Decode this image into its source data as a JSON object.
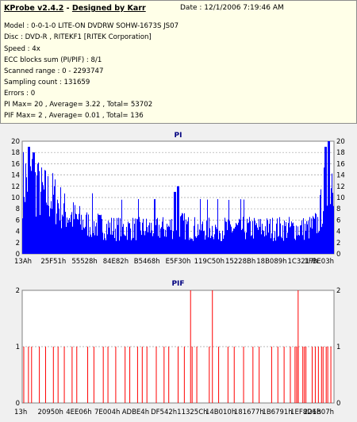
{
  "info": {
    "app_name": "KProbe v2.4.2",
    "separator": " - ",
    "designer": "Designed by Karr",
    "date_label": "Date :",
    "date_value": "12/1/2006 7:19:46 AM",
    "model": "Model : 0-0-1-0 LITE-ON DVDRW SOHW-1673S JS07",
    "disc": "Disc : DVD-R , RITEKF1 [RITEK Corporation]",
    "speed": "Speed : 4x",
    "ecc": "ECC blocks sum (PI/PIF) : 8/1",
    "scanned": "Scanned range : 0 - 2293747",
    "sampling": "Sampling count : 131659",
    "errors": "Errors : 0",
    "pi_stats": "PI Max= 20 , Average= 3.22 , Total= 53702",
    "pif_stats": "PIF Max= 2 , Average= 0.01 , Total= 136"
  },
  "chart_data": [
    {
      "type": "bar",
      "title": "PI",
      "ylim": [
        0,
        20
      ],
      "y_ticks": [
        "0",
        "2",
        "4",
        "6",
        "8",
        "10",
        "12",
        "14",
        "16",
        "18",
        "20"
      ],
      "x_tick_labels": [
        "13Ah",
        "25F51h",
        "55528h",
        "84E82h",
        "B5468h",
        "E5F30h",
        "119C50h",
        "15228Bh",
        "18B089h",
        "1C3217h",
        "1FBE03h"
      ],
      "bar_color": "#0000ff",
      "grid": true,
      "profile_x": [
        0,
        0.02,
        0.06,
        0.1,
        0.14,
        0.2,
        0.3,
        0.4,
        0.46,
        0.5,
        0.54,
        0.6,
        0.7,
        0.8,
        0.88,
        0.92,
        0.95,
        0.97,
        1.0
      ],
      "profile_y": [
        14,
        15,
        12,
        11,
        8,
        6,
        5,
        5,
        5,
        6,
        5,
        5,
        5,
        5,
        5,
        5,
        6,
        12,
        17
      ],
      "spikes": [
        [
          0.02,
          19
        ],
        [
          0.035,
          18
        ],
        [
          0.05,
          16
        ],
        [
          0.49,
          11
        ],
        [
          0.5,
          12
        ],
        [
          0.975,
          19
        ],
        [
          0.985,
          20
        ]
      ]
    },
    {
      "type": "bar",
      "title": "PIF",
      "ylim": [
        0,
        2
      ],
      "y_ticks": [
        "0",
        "1",
        "2"
      ],
      "x_tick_labels": [
        "13h",
        "20950h",
        "4EE06h",
        "7E004h",
        "ADBE4h",
        "DF542h",
        "11325Ch",
        "14B010h",
        "181677h",
        "1B6791h",
        "1EF8D1h",
        "226B07h"
      ],
      "bar_color": "#ff0000",
      "grid": true,
      "ones": [
        0.005,
        0.02,
        0.03,
        0.055,
        0.075,
        0.1,
        0.115,
        0.135,
        0.16,
        0.175,
        0.21,
        0.23,
        0.26,
        0.275,
        0.3,
        0.33,
        0.345,
        0.37,
        0.385,
        0.4,
        0.43,
        0.455,
        0.47,
        0.5,
        0.52,
        0.545,
        0.56,
        0.6,
        0.63,
        0.66,
        0.68,
        0.71,
        0.74,
        0.76,
        0.8,
        0.82,
        0.84,
        0.86,
        0.875,
        0.88,
        0.885,
        0.9,
        0.905,
        0.91,
        0.93,
        0.94,
        0.95,
        0.96,
        0.965,
        0.975,
        0.98,
        0.99
      ],
      "twos": [
        0.54,
        0.61,
        0.885
      ]
    }
  ]
}
